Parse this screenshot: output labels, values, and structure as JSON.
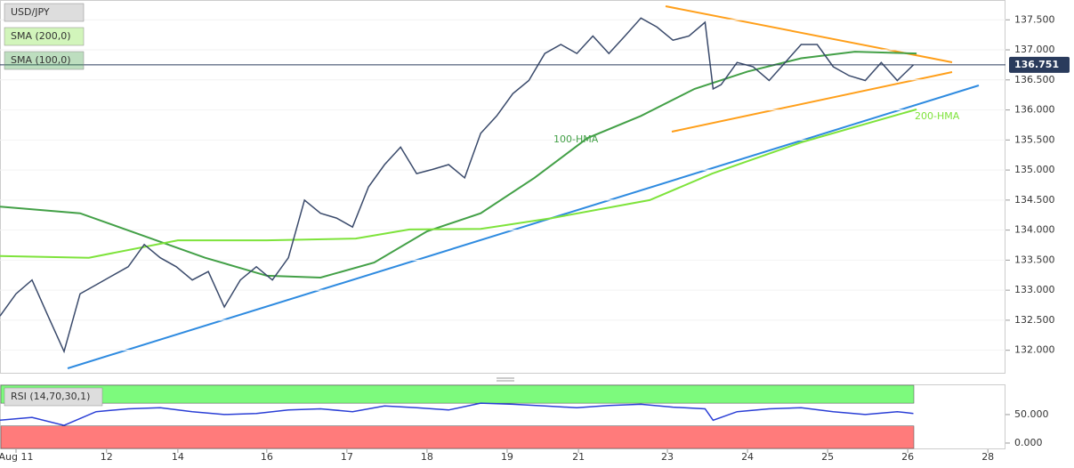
{
  "chart_data": [
    {
      "type": "line",
      "title": "USD/JPY",
      "ylim": [
        131.61,
        137.83
      ],
      "yticks": [
        {
          "value": 132,
          "label": "132.000"
        },
        {
          "value": 132.5,
          "label": "132.500"
        },
        {
          "value": 133,
          "label": "133.000"
        },
        {
          "value": 133.5,
          "label": "133.500"
        },
        {
          "value": 134,
          "label": "134.000"
        },
        {
          "value": 134.5,
          "label": "134.500"
        },
        {
          "value": 135,
          "label": "135.000"
        },
        {
          "value": 135.5,
          "label": "135.500"
        },
        {
          "value": 136,
          "label": "136.000"
        },
        {
          "value": 136.5,
          "label": "136.500"
        },
        {
          "value": 137,
          "label": "137.000"
        },
        {
          "value": 137.5,
          "label": "137.500"
        }
      ],
      "xlim": [
        0,
        125.5
      ],
      "grid": true,
      "last_price": 136.751,
      "last_price_color": "#2a3b5c",
      "annotations": [
        "100-HMA",
        "200-HMA"
      ],
      "series": [
        {
          "name": "USD/JPY",
          "color": "#3a4a6b",
          "x": [
            0,
            2,
            4,
            6,
            8,
            10,
            12,
            14,
            16,
            18,
            20,
            22,
            24,
            26,
            28,
            30,
            32,
            34,
            36,
            38,
            40,
            42,
            44,
            46,
            48,
            50,
            52,
            54,
            56,
            58,
            60,
            62,
            64,
            66,
            68,
            70,
            72,
            74,
            76,
            78,
            80,
            82,
            84,
            86,
            88,
            89,
            90,
            92,
            94,
            96,
            98,
            100,
            102,
            104,
            106,
            108,
            110,
            112,
            114
          ],
          "values": [
            132.57,
            132.94,
            133.17,
            132.57,
            131.98,
            132.94,
            133.09,
            133.24,
            133.39,
            133.76,
            133.54,
            133.39,
            133.17,
            133.31,
            132.72,
            133.17,
            133.39,
            133.17,
            133.54,
            134.5,
            134.28,
            134.2,
            134.05,
            134.72,
            135.09,
            135.38,
            134.94,
            135.01,
            135.09,
            134.87,
            135.61,
            135.9,
            136.27,
            136.49,
            136.94,
            137.09,
            136.94,
            137.23,
            136.94,
            137.23,
            137.53,
            137.38,
            137.16,
            137.23,
            137.46,
            136.35,
            136.42,
            136.79,
            136.72,
            136.49,
            136.79,
            137.09,
            137.09,
            136.72,
            136.57,
            136.49,
            136.79,
            136.49,
            136.75
          ]
        },
        {
          "name": "SMA (200,0)",
          "color": "#7ee33b",
          "x": [
            0,
            11.1,
            22.2,
            33.3,
            44.4,
            51.1,
            60,
            68.9,
            81.1,
            88.9,
            100,
            114.4
          ],
          "values": [
            133.57,
            133.54,
            133.83,
            133.83,
            133.86,
            134.01,
            134.02,
            134.2,
            134.5,
            134.94,
            135.46,
            136.01
          ]
        },
        {
          "name": "SMA (100,0)",
          "color": "#43a047",
          "x": [
            0,
            10,
            17.8,
            25.6,
            33.3,
            40,
            46.7,
            53.3,
            60,
            66.7,
            73.3,
            80,
            86.7,
            93.3,
            100,
            106.7,
            114.4
          ],
          "values": [
            134.39,
            134.28,
            133.91,
            133.54,
            133.24,
            133.21,
            133.46,
            133.98,
            134.28,
            134.87,
            135.53,
            135.9,
            136.35,
            136.64,
            136.86,
            136.97,
            136.94
          ]
        }
      ]
    },
    {
      "type": "line",
      "title": "RSI (14,70,30,1)",
      "ylim": [
        -11,
        103
      ],
      "yticks": [
        {
          "value": 0,
          "label": "0.000"
        },
        {
          "value": 50,
          "label": "50.000"
        }
      ],
      "xlim": [
        0,
        125.5
      ],
      "xticks": [
        {
          "value": 2,
          "label": "Aug 11"
        },
        {
          "value": 13.3,
          "label": "12"
        },
        {
          "value": 22.2,
          "label": "14"
        },
        {
          "value": 33.3,
          "label": "16"
        },
        {
          "value": 43.3,
          "label": "17"
        },
        {
          "value": 53.3,
          "label": "18"
        },
        {
          "value": 63.3,
          "label": "19"
        },
        {
          "value": 72.2,
          "label": "21"
        },
        {
          "value": 83.3,
          "label": "23"
        },
        {
          "value": 93.3,
          "label": "24"
        },
        {
          "value": 103.3,
          "label": "25"
        },
        {
          "value": 113.3,
          "label": "26"
        },
        {
          "value": 123.3,
          "label": "28"
        }
      ],
      "upper": 70,
      "lower": 30,
      "upper_color": "#7dfa7d",
      "lower_color": "#ff7b7b",
      "series": [
        {
          "name": "RSI",
          "color": "#2b3fd6",
          "x": [
            0,
            4,
            8,
            12,
            16,
            20,
            24,
            28,
            32,
            36,
            40,
            44,
            48,
            52,
            56,
            60,
            64,
            68,
            72,
            76,
            80,
            84,
            88,
            89,
            92,
            96,
            100,
            104,
            108,
            112,
            114
          ],
          "values": [
            40,
            45,
            31,
            55,
            60,
            62,
            55,
            50,
            52,
            58,
            60,
            55,
            65,
            62,
            58,
            70,
            68,
            65,
            62,
            66,
            68,
            63,
            60,
            40,
            55,
            60,
            62,
            55,
            50,
            55,
            52
          ]
        }
      ]
    }
  ]
}
